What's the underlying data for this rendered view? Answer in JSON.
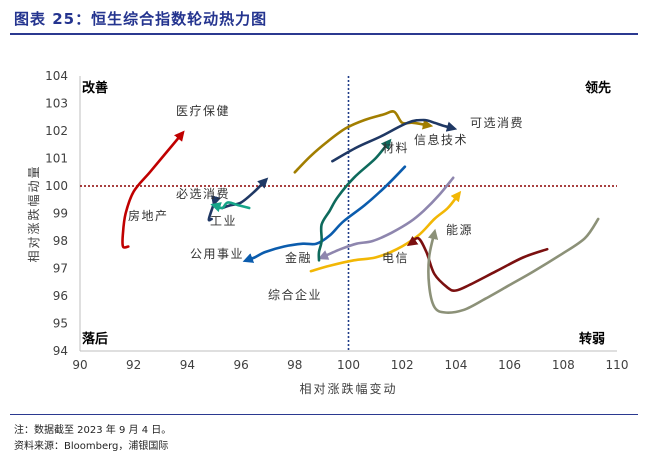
{
  "figure": {
    "title": "图表 25：恒生综合指数轮动热力图"
  },
  "footer": {
    "note": "注：数据截至 2023 年 9 月 4 日。",
    "source": "资料来源：Bloomberg，浦银国际"
  },
  "chart_data": {
    "type": "line",
    "xlabel": "相对涨跌幅变动",
    "ylabel": "相对涨跌幅动量",
    "xlim": [
      90,
      110
    ],
    "ylim": [
      94,
      104
    ],
    "xticks": [
      "90",
      "92",
      "94",
      "96",
      "98",
      "100",
      "102",
      "104",
      "106",
      "108",
      "110"
    ],
    "yticks": [
      "94",
      "95",
      "96",
      "97",
      "98",
      "99",
      "100",
      "101",
      "102",
      "103",
      "104"
    ],
    "reference_lines": {
      "x": 100,
      "y": 100
    },
    "grid": false,
    "quadrant_labels": {
      "top_left": "改善",
      "top_right": "领先",
      "bottom_left": "落后",
      "bottom_right": "转弱"
    },
    "series": [
      {
        "name": "医疗保健",
        "color": "#c00000",
        "x": [
          91.8,
          91.6,
          91.6,
          91.7,
          92.0,
          92.6,
          93.2,
          93.8
        ],
        "y": [
          97.8,
          97.8,
          98.3,
          99.0,
          99.8,
          100.5,
          101.2,
          101.9
        ]
      },
      {
        "name": "房地产",
        "color": "#203864",
        "x": [
          94.9,
          94.8,
          95.0,
          95.0
        ],
        "y": [
          98.8,
          98.8,
          99.4,
          99.4
        ]
      },
      {
        "name": "必选消费",
        "color": "#1f3864",
        "x": [
          95.3,
          95.6,
          96.0,
          96.5,
          96.9
        ],
        "y": [
          99.2,
          99.3,
          99.4,
          99.8,
          100.2
        ]
      },
      {
        "name": "工业",
        "color": "#17a589",
        "x": [
          96.3,
          95.9,
          95.5,
          95.3,
          95.0
        ],
        "y": [
          99.2,
          99.3,
          99.4,
          99.2,
          99.3
        ]
      },
      {
        "name": "公用事业",
        "color": "#0b5cad",
        "x": [
          102.1,
          101.4,
          100.6,
          99.8,
          99.3,
          98.8,
          98.3,
          97.6,
          96.9,
          96.5,
          96.2
        ],
        "y": [
          100.7,
          100.0,
          99.3,
          98.7,
          98.2,
          97.9,
          97.9,
          97.8,
          97.6,
          97.4,
          97.3
        ]
      },
      {
        "name": "综合企业",
        "color": "#f2b705",
        "x": [
          98.6,
          99.3,
          100.2,
          101.0,
          101.8,
          102.6,
          103.2,
          103.7,
          104.1
        ],
        "y": [
          96.9,
          97.1,
          97.3,
          97.4,
          97.7,
          98.2,
          98.8,
          99.2,
          99.7
        ]
      },
      {
        "name": "金融",
        "color": "#8e86ae",
        "x": [
          103.9,
          103.4,
          102.8,
          102.3,
          101.6,
          100.9,
          100.3,
          99.7,
          99.0
        ],
        "y": [
          100.3,
          99.7,
          99.1,
          98.7,
          98.3,
          98.0,
          97.9,
          97.7,
          97.4
        ]
      },
      {
        "name": "材料",
        "color": "#0e6a5c",
        "x": [
          98.9,
          98.9,
          99.0,
          99.0,
          99.3,
          99.6,
          100.2,
          101.0,
          101.5
        ],
        "y": [
          97.3,
          97.6,
          98.0,
          98.6,
          99.1,
          99.6,
          100.3,
          101.0,
          101.6
        ]
      },
      {
        "name": "可选消费",
        "color": "#a27e00",
        "x": [
          98.0,
          98.6,
          99.2,
          99.9,
          100.6,
          101.3,
          101.7,
          102.0,
          102.4,
          103.0
        ],
        "y": [
          100.5,
          101.1,
          101.6,
          102.1,
          102.4,
          102.6,
          102.7,
          102.3,
          102.3,
          102.2
        ]
      },
      {
        "name": "信息技术",
        "color": "#1f3864",
        "x": [
          99.4,
          100.3,
          101.2,
          102.2,
          102.8,
          103.2,
          103.5,
          103.9
        ],
        "y": [
          100.9,
          101.4,
          101.8,
          102.3,
          102.4,
          102.3,
          102.2,
          102.1
        ]
      },
      {
        "name": "电信",
        "color": "#7b1010",
        "x": [
          107.4,
          106.5,
          105.5,
          104.5,
          104.0,
          103.7,
          103.2,
          102.9,
          102.6,
          102.3
        ],
        "y": [
          97.7,
          97.4,
          96.9,
          96.4,
          96.2,
          96.3,
          96.8,
          97.6,
          98.1,
          97.9
        ]
      },
      {
        "name": "能源",
        "color": "#8c9178",
        "x": [
          109.3,
          108.8,
          107.9,
          106.9,
          106.0,
          105.1,
          104.3,
          103.6,
          103.2,
          103.0,
          103.0,
          103.2
        ],
        "y": [
          98.8,
          98.1,
          97.5,
          96.9,
          96.4,
          95.9,
          95.5,
          95.4,
          95.6,
          96.4,
          97.4,
          98.3
        ]
      }
    ],
    "series_labels": [
      "医疗保健",
      "必选消费",
      "房地产",
      "工业",
      "公用事业",
      "金融",
      "综合企业",
      "材料",
      "信息技术",
      "可选消费",
      "电信",
      "能源"
    ]
  }
}
